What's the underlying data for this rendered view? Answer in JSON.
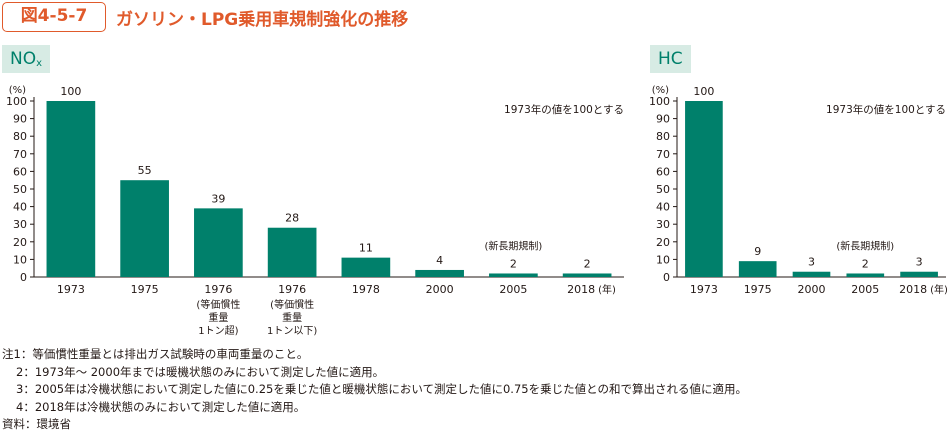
{
  "figure": {
    "number": "図4-5-7",
    "title": "ガソリン・LPG乗用車規制強化の推移"
  },
  "chart_data": [
    {
      "type": "bar",
      "panel_label_main": "NO",
      "panel_label_sub": "x",
      "unit_label": "(%)",
      "annotation": "1973年の値を100とする",
      "ylim": [
        0,
        100
      ],
      "yticks": [
        0,
        10,
        20,
        30,
        40,
        50,
        60,
        70,
        80,
        90,
        100
      ],
      "categories": [
        "1973",
        "1975",
        "1976",
        "1976",
        "1978",
        "2000",
        "2005",
        "2018"
      ],
      "category_sublabels": [
        "",
        "",
        "(等価慣性\n重量\n1トン超)",
        "(等価慣性\n重量\n1トン以下)",
        "",
        "",
        "",
        ""
      ],
      "values": [
        100,
        55,
        39,
        28,
        11,
        4,
        2,
        2
      ],
      "x_unit": "(年)",
      "regime_label": "(新長期規制)",
      "bar_color": "#00806b"
    },
    {
      "type": "bar",
      "panel_label_main": "HC",
      "panel_label_sub": "",
      "unit_label": "(%)",
      "annotation": "1973年の値を100とする",
      "ylim": [
        0,
        100
      ],
      "yticks": [
        0,
        10,
        20,
        30,
        40,
        50,
        60,
        70,
        80,
        90,
        100
      ],
      "categories": [
        "1973",
        "1975",
        "2000",
        "2005",
        "2018"
      ],
      "category_sublabels": [
        "",
        "",
        "",
        "",
        ""
      ],
      "values": [
        100,
        9,
        3,
        2,
        3
      ],
      "x_unit": "(年)",
      "regime_label": "(新長期規制)",
      "bar_color": "#00806b"
    }
  ],
  "notes": [
    "注1：等価慣性重量とは排出ガス試験時の車両重量のこと。",
    "2：1973年～ 2000年までは暖機状態のみにおいて測定した値に適用。",
    "3：2005年は冷機状態において測定した値に0.25を乗じた値と暖機状態において測定した値に0.75を乗じた値との和で算出される値に適用。",
    "4：2018年は冷機状態のみにおいて測定した値に適用。"
  ],
  "source": "資料：環境省"
}
